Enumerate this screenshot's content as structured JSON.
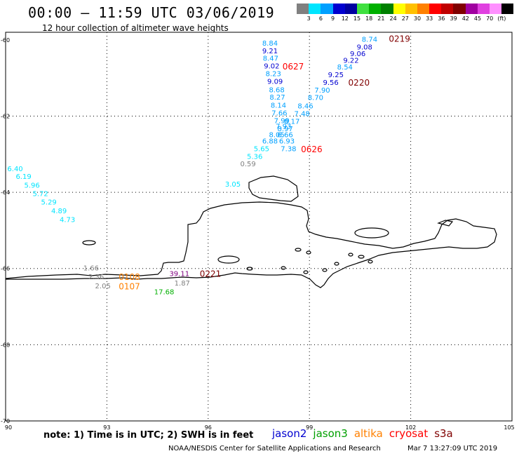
{
  "header": {
    "title": "00:00 – 11:59 UTC 03/06/2019",
    "subtitle": "12 hour collection of altimeter wave heights"
  },
  "legend": {
    "colors": [
      "#808080",
      "#00e5ff",
      "#00a0ff",
      "#0000d0",
      "#0000a0",
      "#40e040",
      "#00b000",
      "#008000",
      "#ffff00",
      "#ffc000",
      "#ff8000",
      "#ff0000",
      "#c00000",
      "#800000",
      "#a000a0",
      "#e040e0",
      "#ff90ff",
      "#000000"
    ],
    "labels": [
      "3",
      "6",
      "9",
      "12",
      "15",
      "18",
      "21",
      "24",
      "27",
      "30",
      "33",
      "36",
      "39",
      "42",
      "45",
      "70",
      "(ft)"
    ]
  },
  "axes": {
    "lon_ticks": [
      "90",
      "93",
      "96",
      "99",
      "102",
      "105"
    ],
    "lat_ticks": [
      "-60",
      "-62",
      "-64",
      "-66",
      "-68",
      "-70"
    ]
  },
  "observations": [
    {
      "v": "8.74",
      "lon": 100.55,
      "lat": -60.05,
      "c": "#00a0ff"
    },
    {
      "v": "9.08",
      "lon": 100.4,
      "lat": -60.25,
      "c": "#0000d0"
    },
    {
      "v": "9.06",
      "lon": 100.2,
      "lat": -60.43,
      "c": "#0000d0"
    },
    {
      "v": "9.22",
      "lon": 100.0,
      "lat": -60.6,
      "c": "#0000d0"
    },
    {
      "v": "8.54",
      "lon": 99.82,
      "lat": -60.78,
      "c": "#00a0ff"
    },
    {
      "v": "9.25",
      "lon": 99.55,
      "lat": -60.98,
      "c": "#0000d0"
    },
    {
      "v": "9.56",
      "lon": 99.4,
      "lat": -61.18,
      "c": "#0000d0"
    },
    {
      "v": "7.90",
      "lon": 99.15,
      "lat": -61.38,
      "c": "#00a0ff"
    },
    {
      "v": "8.70",
      "lon": 98.95,
      "lat": -61.58,
      "c": "#00a0ff"
    },
    {
      "v": "8.46",
      "lon": 98.65,
      "lat": -61.8,
      "c": "#00a0ff"
    },
    {
      "v": "7.48",
      "lon": 98.55,
      "lat": -62.0,
      "c": "#00a0ff"
    },
    {
      "v": "8.84",
      "lon": 97.6,
      "lat": -60.15,
      "c": "#00a0ff"
    },
    {
      "v": "9.21",
      "lon": 97.6,
      "lat": -60.35,
      "c": "#0000d0"
    },
    {
      "v": "8.47",
      "lon": 97.62,
      "lat": -60.55,
      "c": "#00a0ff"
    },
    {
      "v": "9.02",
      "lon": 97.65,
      "lat": -60.75,
      "c": "#0000d0"
    },
    {
      "v": "8.23",
      "lon": 97.7,
      "lat": -60.95,
      "c": "#00a0ff"
    },
    {
      "v": "9.09",
      "lon": 97.75,
      "lat": -61.15,
      "c": "#0000d0"
    },
    {
      "v": "8.68",
      "lon": 97.8,
      "lat": -61.37,
      "c": "#00a0ff"
    },
    {
      "v": "8.27",
      "lon": 97.82,
      "lat": -61.57,
      "c": "#00a0ff"
    },
    {
      "v": "8.14",
      "lon": 97.85,
      "lat": -61.78,
      "c": "#00a0ff"
    },
    {
      "v": "7.66",
      "lon": 97.88,
      "lat": -61.98,
      "c": "#00a0ff"
    },
    {
      "v": "7.99",
      "lon": 97.95,
      "lat": -62.18,
      "c": "#00a0ff"
    },
    {
      "v": "8.17",
      "lon": 98.25,
      "lat": -62.2,
      "c": "#00a0ff"
    },
    {
      "v": "7.93",
      "lon": 98.0,
      "lat": -62.33,
      "c": "#00a0ff"
    },
    {
      "v": "8.97",
      "lon": 98.05,
      "lat": -62.4,
      "c": "#00a0ff"
    },
    {
      "v": "8.05",
      "lon": 97.8,
      "lat": -62.55,
      "c": "#00a0ff"
    },
    {
      "v": "6.66",
      "lon": 98.05,
      "lat": -62.55,
      "c": "#00a0ff"
    },
    {
      "v": "6.88",
      "lon": 97.6,
      "lat": -62.72,
      "c": "#00a0ff"
    },
    {
      "v": "6.93",
      "lon": 98.1,
      "lat": -62.72,
      "c": "#00a0ff"
    },
    {
      "v": "5.65",
      "lon": 97.35,
      "lat": -62.92,
      "c": "#00e5ff"
    },
    {
      "v": "7.38",
      "lon": 98.15,
      "lat": -62.92,
      "c": "#00a0ff"
    },
    {
      "v": "5.36",
      "lon": 97.15,
      "lat": -63.12,
      "c": "#00e5ff"
    },
    {
      "v": "0.59",
      "lon": 96.95,
      "lat": -63.32,
      "c": "#808080"
    },
    {
      "v": "3.05",
      "lon": 96.5,
      "lat": -63.85,
      "c": "#00e5ff"
    },
    {
      "v": "6.40",
      "lon": 90.05,
      "lat": -63.45,
      "c": "#00e5ff"
    },
    {
      "v": "6.19",
      "lon": 90.3,
      "lat": -63.65,
      "c": "#00e5ff"
    },
    {
      "v": "5.96",
      "lon": 90.55,
      "lat": -63.88,
      "c": "#00e5ff"
    },
    {
      "v": "5.72",
      "lon": 90.8,
      "lat": -64.1,
      "c": "#00e5ff"
    },
    {
      "v": "5.29",
      "lon": 91.05,
      "lat": -64.32,
      "c": "#00e5ff"
    },
    {
      "v": "4.89",
      "lon": 91.35,
      "lat": -64.55,
      "c": "#00e5ff"
    },
    {
      "v": "4.73",
      "lon": 91.6,
      "lat": -64.78,
      "c": "#00e5ff"
    },
    {
      "v": "1.66",
      "lon": 92.3,
      "lat": -66.05,
      "c": "#808080"
    },
    {
      "v": "2.36",
      "lon": 92.45,
      "lat": -66.28,
      "c": "#808080"
    },
    {
      "v": "2.05",
      "lon": 92.65,
      "lat": -66.52,
      "c": "#808080"
    },
    {
      "v": "39.11",
      "lon": 94.85,
      "lat": -66.2,
      "c": "#800080"
    },
    {
      "v": "1.87",
      "lon": 95.0,
      "lat": -66.45,
      "c": "#808080"
    },
    {
      "v": "17.68",
      "lon": 94.4,
      "lat": -66.68,
      "c": "#00b000"
    }
  ],
  "pass_labels": [
    {
      "t": "0219",
      "lon": 101.35,
      "lat": -60.05,
      "c": "#800000"
    },
    {
      "t": "0627",
      "lon": 98.2,
      "lat": -60.78,
      "c": "#ff0000"
    },
    {
      "t": "0220",
      "lon": 100.15,
      "lat": -61.2,
      "c": "#800000"
    },
    {
      "t": "0626",
      "lon": 98.75,
      "lat": -62.95,
      "c": "#ff0000"
    },
    {
      "t": "0221",
      "lon": 95.75,
      "lat": -66.22,
      "c": "#800000"
    },
    {
      "t": "0108",
      "lon": 93.35,
      "lat": -66.3,
      "c": "#ff8000"
    },
    {
      "t": "0107",
      "lon": 93.35,
      "lat": -66.55,
      "c": "#ff8000"
    }
  ],
  "footer": {
    "note": "note:  1) Time is in UTC;  2) SWH is in feet",
    "satellites": [
      {
        "name": "jason2",
        "color": "#0000d0"
      },
      {
        "name": "jason3",
        "color": "#00a000"
      },
      {
        "name": "altika",
        "color": "#ff8000"
      },
      {
        "name": "cryosat",
        "color": "#ff0000"
      },
      {
        "name": "s3a",
        "color": "#800000"
      }
    ],
    "credit": "NOAA/NESDIS Center for Satellite Applications and Research",
    "timestamp": "Mar  7 13:27:09 UTC 2019"
  }
}
